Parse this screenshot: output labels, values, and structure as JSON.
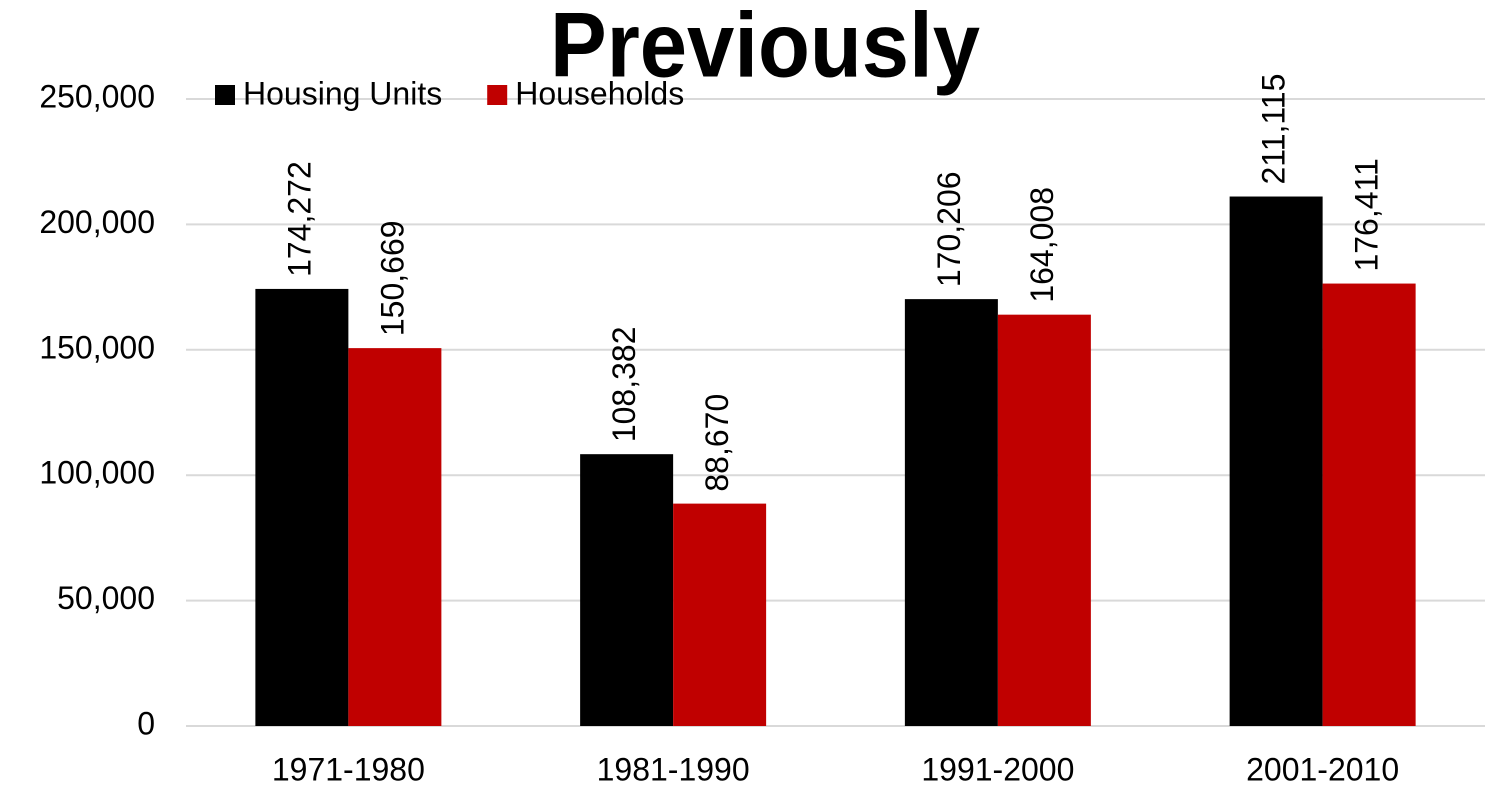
{
  "chart_data": {
    "type": "bar",
    "title": "Previously",
    "categories": [
      "1971-1980",
      "1981-1990",
      "1991-2000",
      "2001-2010"
    ],
    "series": [
      {
        "name": "Housing Units",
        "color": "#000000",
        "values": [
          174272,
          108382,
          170206,
          211115
        ],
        "value_labels": [
          "174,272",
          "108,382",
          "170,206",
          "211,115"
        ]
      },
      {
        "name": "Households",
        "color": "#c00000",
        "values": [
          150669,
          88670,
          164008,
          176411
        ],
        "value_labels": [
          "150,669",
          "88,670",
          "164,008",
          "176,411"
        ]
      }
    ],
    "ylim": [
      0,
      250000
    ],
    "yticks": [
      0,
      {
        "value": 50000,
        "label": "50,000"
      },
      {
        "value": 100000,
        "label": "100,000"
      },
      {
        "value": 150000,
        "label": "150,000"
      },
      {
        "value": 200000,
        "label": "200,000"
      },
      {
        "value": 250000,
        "label": "250,000"
      }
    ],
    "grid": true,
    "legend": "top-left"
  }
}
